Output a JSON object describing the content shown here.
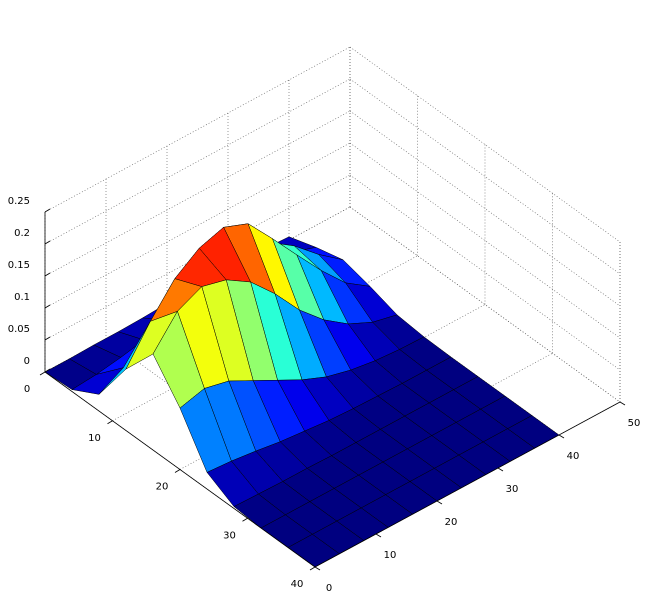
{
  "chart_data": {
    "type": "surface",
    "colormap": "jet",
    "grid": true,
    "xlim": [
      0,
      40
    ],
    "xticks": [
      0,
      10,
      20,
      30,
      40
    ],
    "ylim": [
      0,
      50
    ],
    "yticks": [
      0,
      10,
      20,
      30,
      40,
      50
    ],
    "zlim": [
      0,
      0.25
    ],
    "zticks": [
      0,
      0.05,
      0.1,
      0.15,
      0.2,
      0.25
    ],
    "x": [
      0,
      4,
      8,
      12,
      16,
      20,
      24,
      28,
      32,
      36,
      40
    ],
    "y": [
      0,
      4,
      8,
      12,
      16,
      20,
      24,
      28,
      32,
      36,
      40
    ],
    "z": [
      [
        0,
        0.003,
        0.026,
        0.096,
        0.15,
        0.096,
        0.026,
        0.003,
        0,
        0,
        0
      ],
      [
        0,
        0.006,
        0.047,
        0.15,
        0.196,
        0.106,
        0.023,
        0.002,
        0,
        0,
        0
      ],
      [
        0.001,
        0.012,
        0.074,
        0.196,
        0.214,
        0.097,
        0.018,
        0.001,
        0,
        0,
        0
      ],
      [
        0.001,
        0.018,
        0.101,
        0.223,
        0.204,
        0.077,
        0.012,
        0.001,
        0,
        0,
        0
      ],
      [
        0.002,
        0.028,
        0.127,
        0.235,
        0.18,
        0.057,
        0.008,
        0,
        0,
        0,
        0
      ],
      [
        0.004,
        0.037,
        0.141,
        0.22,
        0.141,
        0.037,
        0.004,
        0,
        0,
        0,
        0
      ],
      [
        0.005,
        0.043,
        0.135,
        0.176,
        0.095,
        0.021,
        0.002,
        0,
        0,
        0,
        0
      ],
      [
        0.007,
        0.045,
        0.119,
        0.13,
        0.059,
        0.011,
        0.001,
        0,
        0,
        0,
        0
      ],
      [
        0.008,
        0.042,
        0.093,
        0.085,
        0.032,
        0.005,
        0,
        0,
        0,
        0,
        0
      ],
      [
        0.007,
        0.032,
        0.059,
        0.045,
        0.014,
        0.002,
        0,
        0,
        0,
        0,
        0
      ],
      [
        0.005,
        0.019,
        0.03,
        0.019,
        0.005,
        0.001,
        0,
        0,
        0,
        0,
        0
      ]
    ]
  }
}
